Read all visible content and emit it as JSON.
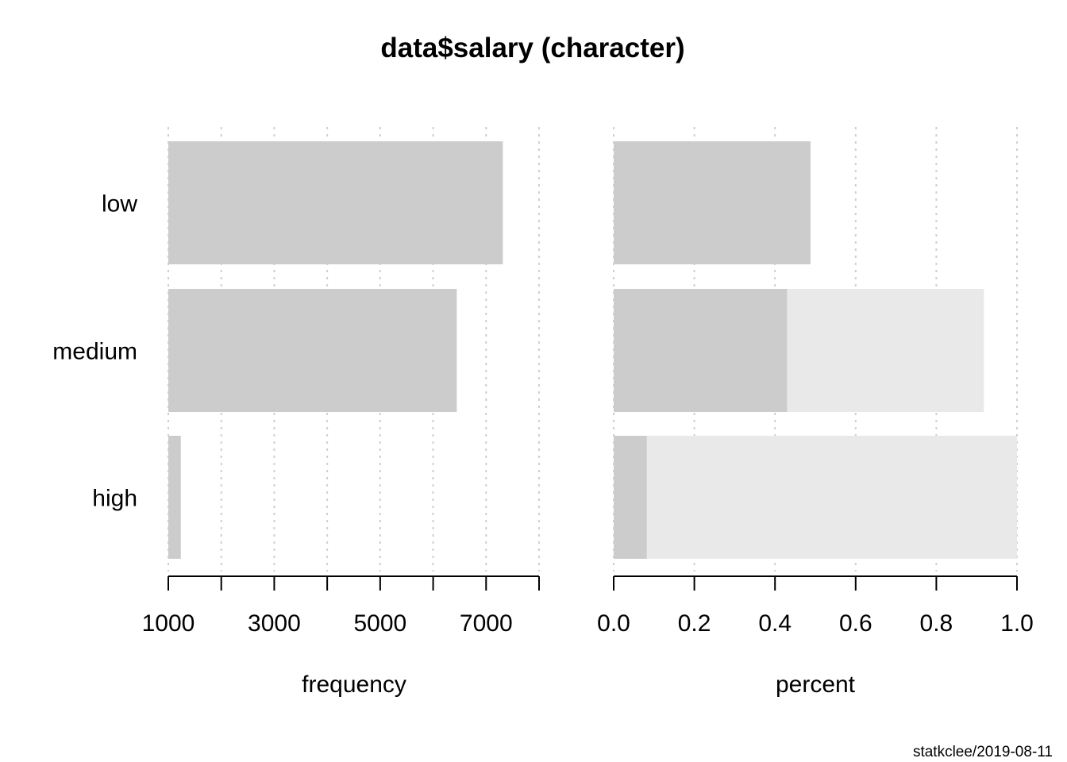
{
  "chart_data": {
    "type": "bar",
    "orientation": "horizontal",
    "title": "data$salary (character)",
    "categories": [
      "low",
      "medium",
      "high"
    ],
    "panels": [
      {
        "name": "frequency",
        "xlabel": "frequency",
        "xlim": [
          1000,
          8000
        ],
        "ticks": [
          1000,
          2000,
          3000,
          4000,
          5000,
          6000,
          7000,
          8000
        ],
        "tick_labels": [
          "1000",
          "3000",
          "5000",
          "7000"
        ],
        "tick_label_values": [
          1000,
          3000,
          5000,
          7000
        ],
        "series": [
          {
            "values": [
              7316,
              6446,
              1237
            ],
            "color": "#cccccc"
          }
        ]
      },
      {
        "name": "percent",
        "xlabel": "percent",
        "xlim": [
          0,
          1
        ],
        "ticks": [
          0,
          0.2,
          0.4,
          0.6,
          0.8,
          1.0
        ],
        "tick_labels": [
          "0.0",
          "0.2",
          "0.4",
          "0.6",
          "0.8",
          "1.0"
        ],
        "tick_label_values": [
          0,
          0.2,
          0.4,
          0.6,
          0.8,
          1.0
        ],
        "series": [
          {
            "values": [
              0.488,
              0.43,
              0.082
            ],
            "color": "#cccccc"
          },
          {
            "values": [
              0.488,
              0.918,
              1.0
            ],
            "color": "#e9e9e9"
          }
        ]
      }
    ],
    "grid": "dotted vertical",
    "footer": "statkclee/2019-08-11"
  }
}
